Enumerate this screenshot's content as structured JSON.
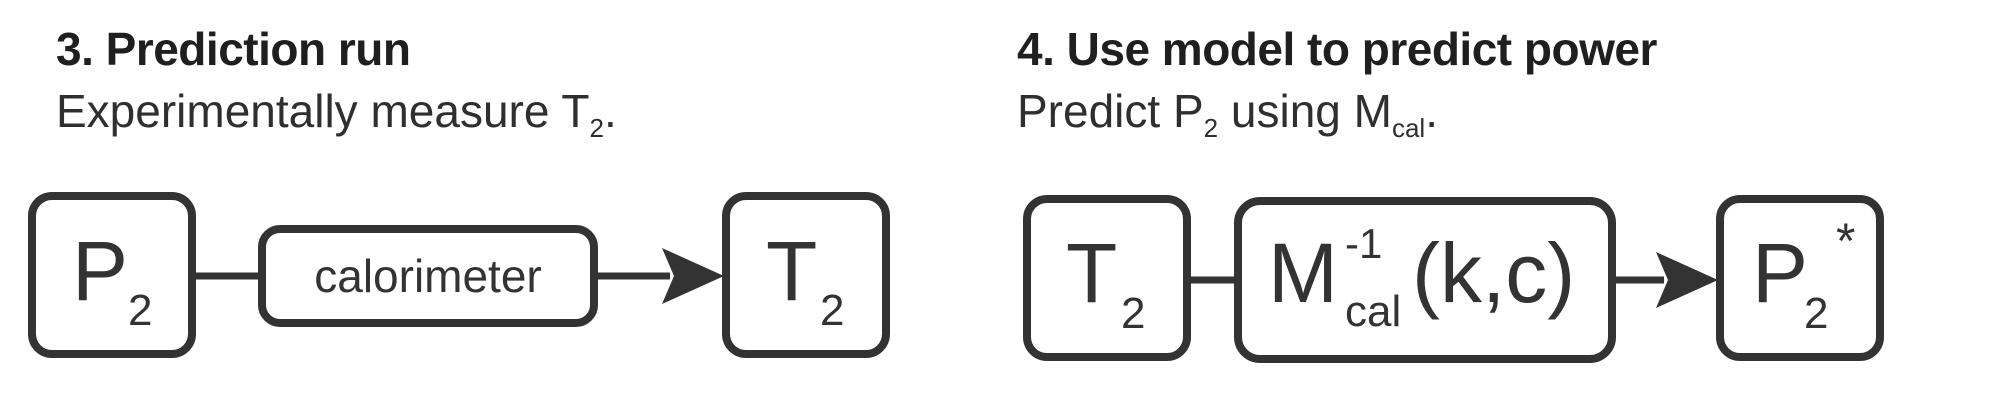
{
  "panels": [
    {
      "heading": "3.  Prediction run",
      "sub_text": "Experimentally measure T",
      "sub_subscript": "2",
      "sub_tail": ".",
      "boxes": [
        {
          "main": "P",
          "subscript": "2"
        },
        {
          "main": "calorimeter"
        },
        {
          "main": "T",
          "subscript": "2"
        }
      ]
    },
    {
      "heading": "4.  Use model to predict power",
      "sub_text": "Predict P",
      "sub_subscript": "2",
      "sub_text2": " using M",
      "sub_subscript2": "cal",
      "sub_tail": ".",
      "boxes": [
        {
          "main": "T",
          "subscript": "2"
        },
        {
          "main": "M",
          "superscript": "-1",
          "subscript": "cal",
          "tail": "(k,c)"
        },
        {
          "main": "P",
          "subscript": "2",
          "superscript": "*"
        }
      ]
    }
  ]
}
